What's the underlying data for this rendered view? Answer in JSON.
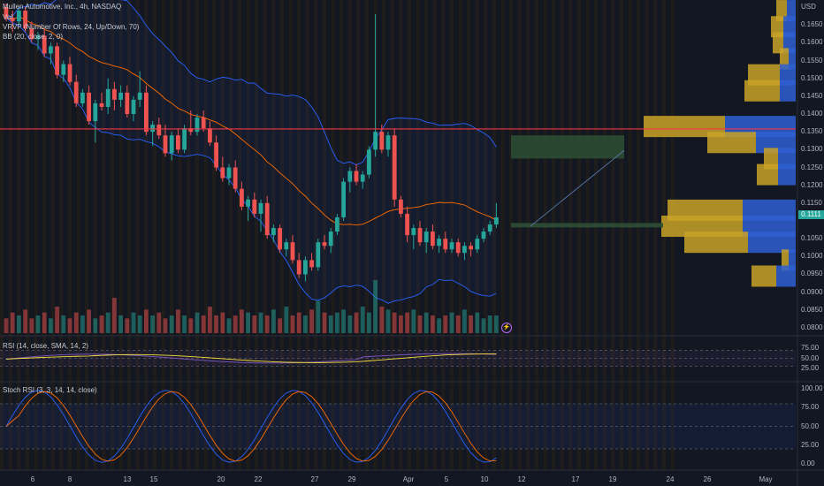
{
  "legend": {
    "symbol_line": "Mullen Automotive, Inc., 4h, NASDAQ",
    "vol": "Vol",
    "vrvp": "VRVP (Number Of Rows, 24, Up/Down, 70)",
    "bb": "BB (20, close, 2, 0)",
    "rsi": "RSI (14, close, SMA, 14, 2)",
    "stoch": "Stoch RSI (3, 3, 14, 14, close)"
  },
  "price_axis": {
    "currency": "USD",
    "ticks": [
      "0.1650",
      "0.1600",
      "0.1550",
      "0.1500",
      "0.1450",
      "0.1400",
      "0.1350",
      "0.1300",
      "0.1250",
      "0.1200",
      "0.1150",
      "0.1050",
      "0.1000",
      "0.0950",
      "0.0900",
      "0.0850",
      "0.0800"
    ],
    "last_price": "0.1111",
    "last_price_color": "#26a69a"
  },
  "rsi_axis": {
    "ticks": [
      "75.00",
      "50.00",
      "25.00"
    ]
  },
  "stoch_axis": {
    "ticks": [
      "100.00",
      "75.00",
      "50.00",
      "25.00",
      "0.00"
    ]
  },
  "time_axis": {
    "labels": [
      "6",
      "8",
      "13",
      "15",
      "20",
      "22",
      "27",
      "29",
      "Apr",
      "5",
      "10",
      "12",
      "17",
      "19",
      "24",
      "26",
      "May"
    ]
  },
  "colors": {
    "up": "#26a69a",
    "down": "#ef5350",
    "bb_band": "#2962ff",
    "bb_basis": "#ff6d00",
    "hline": "#f23645",
    "rsi": "#7e57c2",
    "rsi_ma": "#f7e13c",
    "stoch_k": "#2962ff",
    "stoch_d": "#ff6d00",
    "vrvp_up": "#2f5fd1",
    "vrvp_down": "#c9a227"
  },
  "chart_data": {
    "type": "candlestick",
    "price_ylim": [
      0.0785,
      0.1715
    ],
    "horizontal_line": 0.1358,
    "candles": [
      [
        0.17,
        0.171,
        0.166,
        0.167
      ],
      [
        0.167,
        0.169,
        0.163,
        0.166
      ],
      [
        0.166,
        0.17,
        0.165,
        0.169
      ],
      [
        0.169,
        0.17,
        0.163,
        0.164
      ],
      [
        0.164,
        0.166,
        0.16,
        0.161
      ],
      [
        0.161,
        0.163,
        0.158,
        0.162
      ],
      [
        0.162,
        0.164,
        0.156,
        0.157
      ],
      [
        0.157,
        0.16,
        0.154,
        0.159
      ],
      [
        0.159,
        0.16,
        0.15,
        0.151
      ],
      [
        0.151,
        0.155,
        0.149,
        0.154
      ],
      [
        0.154,
        0.156,
        0.148,
        0.149
      ],
      [
        0.149,
        0.151,
        0.142,
        0.143
      ],
      [
        0.143,
        0.147,
        0.142,
        0.146
      ],
      [
        0.146,
        0.148,
        0.137,
        0.138
      ],
      [
        0.138,
        0.144,
        0.132,
        0.143
      ],
      [
        0.143,
        0.146,
        0.141,
        0.142
      ],
      [
        0.142,
        0.15,
        0.14,
        0.147
      ],
      [
        0.147,
        0.149,
        0.141,
        0.144
      ],
      [
        0.144,
        0.148,
        0.142,
        0.146
      ],
      [
        0.146,
        0.148,
        0.139,
        0.14
      ],
      [
        0.14,
        0.145,
        0.138,
        0.144
      ],
      [
        0.144,
        0.152,
        0.142,
        0.146
      ],
      [
        0.146,
        0.148,
        0.134,
        0.135
      ],
      [
        0.135,
        0.138,
        0.131,
        0.137
      ],
      [
        0.137,
        0.139,
        0.133,
        0.134
      ],
      [
        0.134,
        0.137,
        0.128,
        0.129
      ],
      [
        0.129,
        0.135,
        0.127,
        0.134
      ],
      [
        0.134,
        0.136,
        0.129,
        0.13
      ],
      [
        0.13,
        0.137,
        0.129,
        0.136
      ],
      [
        0.136,
        0.141,
        0.134,
        0.135
      ],
      [
        0.135,
        0.14,
        0.134,
        0.139
      ],
      [
        0.139,
        0.141,
        0.135,
        0.136
      ],
      [
        0.136,
        0.138,
        0.131,
        0.132
      ],
      [
        0.132,
        0.134,
        0.124,
        0.125
      ],
      [
        0.125,
        0.128,
        0.121,
        0.122
      ],
      [
        0.122,
        0.126,
        0.12,
        0.125
      ],
      [
        0.125,
        0.127,
        0.118,
        0.119
      ],
      [
        0.119,
        0.121,
        0.113,
        0.114
      ],
      [
        0.114,
        0.117,
        0.11,
        0.116
      ],
      [
        0.116,
        0.118,
        0.111,
        0.112
      ],
      [
        0.112,
        0.116,
        0.107,
        0.115
      ],
      [
        0.115,
        0.117,
        0.105,
        0.106
      ],
      [
        0.106,
        0.109,
        0.104,
        0.108
      ],
      [
        0.108,
        0.109,
        0.101,
        0.102
      ],
      [
        0.102,
        0.105,
        0.1,
        0.104
      ],
      [
        0.104,
        0.106,
        0.098,
        0.099
      ],
      [
        0.099,
        0.101,
        0.094,
        0.095
      ],
      [
        0.095,
        0.1,
        0.093,
        0.099
      ],
      [
        0.099,
        0.101,
        0.096,
        0.097
      ],
      [
        0.097,
        0.105,
        0.096,
        0.104
      ],
      [
        0.104,
        0.106,
        0.102,
        0.103
      ],
      [
        0.103,
        0.108,
        0.101,
        0.107
      ],
      [
        0.107,
        0.112,
        0.106,
        0.111
      ],
      [
        0.111,
        0.122,
        0.11,
        0.121
      ],
      [
        0.121,
        0.125,
        0.118,
        0.124
      ],
      [
        0.124,
        0.126,
        0.12,
        0.121
      ],
      [
        0.121,
        0.124,
        0.119,
        0.123
      ],
      [
        0.123,
        0.131,
        0.122,
        0.13
      ],
      [
        0.13,
        0.168,
        0.128,
        0.135
      ],
      [
        0.135,
        0.137,
        0.129,
        0.13
      ],
      [
        0.13,
        0.135,
        0.128,
        0.134
      ],
      [
        0.134,
        0.136,
        0.114,
        0.116
      ],
      [
        0.116,
        0.117,
        0.111,
        0.112
      ],
      [
        0.112,
        0.114,
        0.104,
        0.106
      ],
      [
        0.106,
        0.109,
        0.102,
        0.108
      ],
      [
        0.108,
        0.11,
        0.103,
        0.104
      ],
      [
        0.104,
        0.108,
        0.101,
        0.107
      ],
      [
        0.107,
        0.109,
        0.102,
        0.103
      ],
      [
        0.103,
        0.106,
        0.101,
        0.105
      ],
      [
        0.105,
        0.107,
        0.101,
        0.102
      ],
      [
        0.102,
        0.105,
        0.101,
        0.104
      ],
      [
        0.104,
        0.105,
        0.1,
        0.101
      ],
      [
        0.101,
        0.104,
        0.099,
        0.103
      ],
      [
        0.103,
        0.104,
        0.1,
        0.102
      ],
      [
        0.102,
        0.106,
        0.101,
        0.105
      ],
      [
        0.105,
        0.108,
        0.104,
        0.107
      ],
      [
        0.107,
        0.11,
        0.106,
        0.109
      ],
      [
        0.109,
        0.115,
        0.108,
        0.111
      ]
    ],
    "volume": [
      2,
      4,
      3,
      5,
      2,
      3,
      4,
      2,
      6,
      3,
      2,
      4,
      3,
      5,
      2,
      3,
      4,
      9,
      3,
      2,
      4,
      3,
      5,
      3,
      4,
      2,
      3,
      5,
      3,
      2,
      4,
      3,
      6,
      3,
      4,
      2,
      3,
      5,
      4,
      3,
      4,
      3,
      5,
      2,
      6,
      3,
      4,
      3,
      5,
      8,
      4,
      3,
      4,
      5,
      3,
      4,
      6,
      4,
      18,
      6,
      5,
      4,
      3,
      4,
      5,
      3,
      4,
      3,
      2,
      3,
      4,
      3,
      5,
      3,
      4,
      2,
      3,
      3
    ],
    "rsi_levels": [
      70,
      50,
      30
    ],
    "stoch_levels": [
      80,
      50,
      20
    ],
    "vrvp_rows": [
      {
        "price": 0.169,
        "up": 10,
        "down": 12
      },
      {
        "price": 0.1645,
        "up": 14,
        "down": 14
      },
      {
        "price": 0.16,
        "up": 14,
        "down": 12
      },
      {
        "price": 0.1555,
        "up": 8,
        "down": 10
      },
      {
        "price": 0.151,
        "up": 18,
        "down": 36
      },
      {
        "price": 0.1465,
        "up": 18,
        "down": 40
      },
      {
        "price": 0.1365,
        "up": 80,
        "down": 92
      },
      {
        "price": 0.132,
        "up": 45,
        "down": 55
      },
      {
        "price": 0.1275,
        "up": 20,
        "down": 16
      },
      {
        "price": 0.123,
        "up": 20,
        "down": 24
      },
      {
        "price": 0.113,
        "up": 60,
        "down": 85
      },
      {
        "price": 0.1085,
        "up": 60,
        "down": 92
      },
      {
        "price": 0.104,
        "up": 54,
        "down": 72
      },
      {
        "price": 0.099,
        "up": 8,
        "down": 8
      },
      {
        "price": 0.0945,
        "up": 22,
        "down": 28
      }
    ]
  }
}
